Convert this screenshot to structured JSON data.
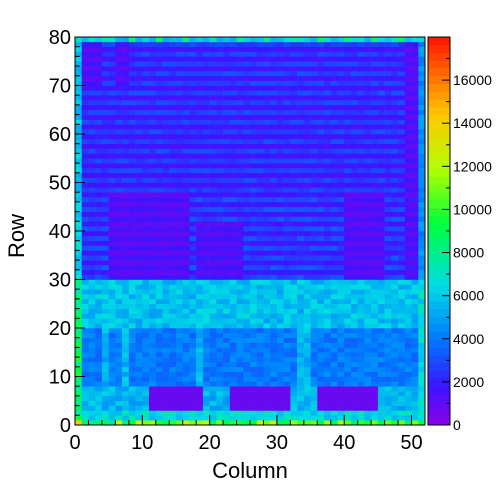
{
  "chart_data": {
    "type": "heatmap",
    "title": "",
    "xlabel": "Column",
    "ylabel": "Row",
    "xlim": [
      0,
      52
    ],
    "ylim": [
      0,
      80
    ],
    "zlim": [
      0,
      18000
    ],
    "x_ticks": [
      0,
      10,
      20,
      30,
      40,
      50
    ],
    "y_ticks": [
      0,
      10,
      20,
      30,
      40,
      50,
      60,
      70,
      80
    ],
    "z_ticks": [
      0,
      2000,
      4000,
      6000,
      8000,
      10000,
      12000,
      14000,
      16000
    ],
    "colormap": "rainbow",
    "ncols": 52,
    "nrows": 80,
    "description_regions": [
      {
        "rows": [
          0,
          1
        ],
        "value": 9000
      },
      {
        "rows": [
          1,
          3
        ],
        "value": 6500
      },
      {
        "rows": [
          3,
          8
        ],
        "value": 5500
      },
      {
        "rows": [
          3,
          8
        ],
        "cols": [
          11,
          19
        ],
        "value": 800
      },
      {
        "rows": [
          3,
          8
        ],
        "cols": [
          23,
          32
        ],
        "value": 800
      },
      {
        "rows": [
          3,
          8
        ],
        "cols": [
          36,
          45
        ],
        "value": 800
      },
      {
        "rows": [
          8,
          20
        ],
        "value": 4000
      },
      {
        "rows": [
          20,
          30
        ],
        "value": 5800
      },
      {
        "rows": [
          30,
          48
        ],
        "value": 2800
      },
      {
        "rows": [
          48,
          80
        ],
        "value": 2600
      }
    ]
  }
}
